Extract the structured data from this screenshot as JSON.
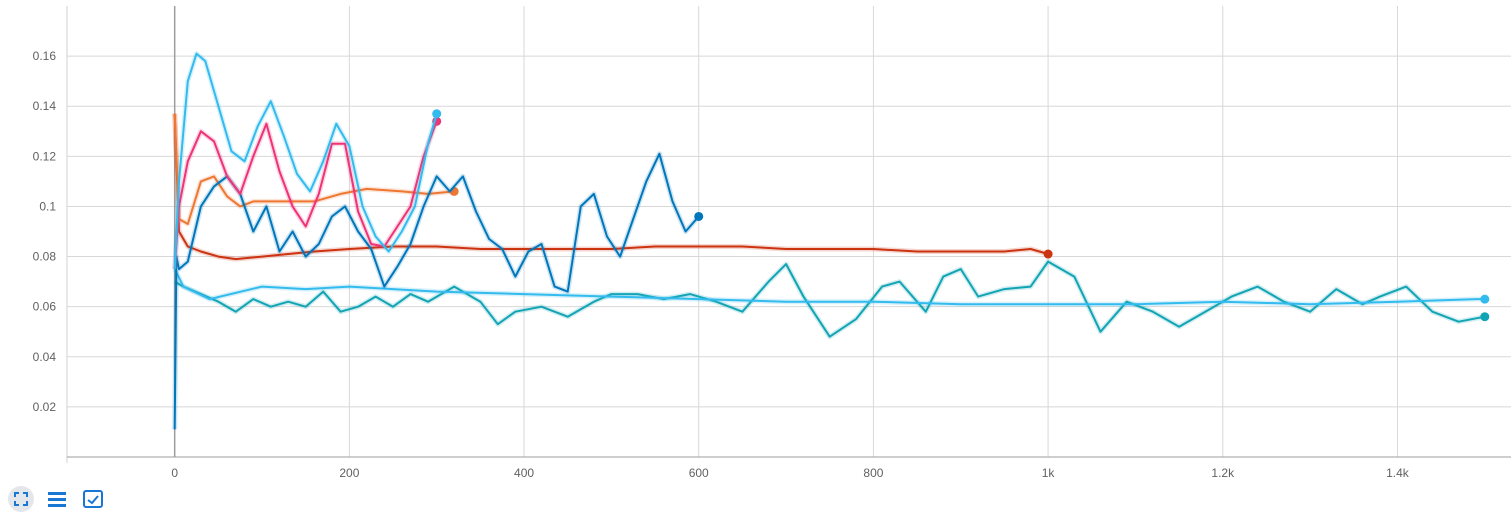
{
  "chart_data": {
    "type": "line",
    "xlim": [
      -200,
      1530
    ],
    "ylim": [
      0,
      0.18
    ],
    "x_ticks": [
      {
        "value": 0,
        "label": "0"
      },
      {
        "value": 200,
        "label": "200"
      },
      {
        "value": 400,
        "label": "400"
      },
      {
        "value": 600,
        "label": "600"
      },
      {
        "value": 800,
        "label": "800"
      },
      {
        "value": 1000,
        "label": "1k"
      },
      {
        "value": 1200,
        "label": "1.2k"
      },
      {
        "value": 1400,
        "label": "1.4k"
      }
    ],
    "y_ticks": [
      {
        "value": 0.02,
        "label": "0.02"
      },
      {
        "value": 0.04,
        "label": "0.04"
      },
      {
        "value": 0.06,
        "label": "0.06"
      },
      {
        "value": 0.08,
        "label": "0.08"
      },
      {
        "value": 0.1,
        "label": "0.1"
      },
      {
        "value": 0.12,
        "label": "0.12"
      },
      {
        "value": 0.14,
        "label": "0.14"
      },
      {
        "value": 0.16,
        "label": "0.16"
      }
    ],
    "grid": true,
    "legend": "none",
    "series": [
      {
        "color": "#12a4b4",
        "x": [
          0,
          10,
          30,
          50,
          70,
          90,
          110,
          130,
          150,
          170,
          190,
          210,
          230,
          250,
          270,
          290,
          320,
          350,
          370,
          390,
          420,
          450,
          480,
          500,
          530,
          560,
          590,
          620,
          650,
          680,
          700,
          720,
          750,
          780,
          810,
          830,
          860,
          880,
          900,
          920,
          950,
          980,
          1000,
          1030,
          1060,
          1090,
          1120,
          1150,
          1180,
          1210,
          1240,
          1270,
          1300,
          1330,
          1360,
          1380,
          1410,
          1440,
          1470,
          1500
        ],
        "y": [
          0.07,
          0.068,
          0.065,
          0.062,
          0.058,
          0.063,
          0.06,
          0.062,
          0.06,
          0.066,
          0.058,
          0.06,
          0.064,
          0.06,
          0.065,
          0.062,
          0.068,
          0.062,
          0.053,
          0.058,
          0.06,
          0.056,
          0.062,
          0.065,
          0.065,
          0.063,
          0.065,
          0.062,
          0.058,
          0.07,
          0.077,
          0.064,
          0.048,
          0.055,
          0.068,
          0.07,
          0.058,
          0.072,
          0.075,
          0.064,
          0.067,
          0.068,
          0.078,
          0.072,
          0.05,
          0.062,
          0.058,
          0.052,
          0.058,
          0.064,
          0.068,
          0.062,
          0.058,
          0.067,
          0.061,
          0.064,
          0.068,
          0.058,
          0.054,
          0.056
        ]
      },
      {
        "color": "#33bbee",
        "x": [
          0,
          10,
          40,
          100,
          150,
          200,
          250,
          300,
          400,
          500,
          600,
          700,
          800,
          900,
          1000,
          1100,
          1200,
          1300,
          1400,
          1490,
          1500
        ],
        "y": [
          0.075,
          0.068,
          0.063,
          0.068,
          0.067,
          0.068,
          0.067,
          0.066,
          0.065,
          0.064,
          0.063,
          0.062,
          0.062,
          0.061,
          0.061,
          0.061,
          0.062,
          0.061,
          0.062,
          0.063,
          0.063
        ]
      },
      {
        "color": "#cc3311",
        "x": [
          0,
          5,
          15,
          30,
          50,
          70,
          100,
          130,
          160,
          200,
          250,
          300,
          350,
          400,
          450,
          500,
          550,
          600,
          650,
          700,
          750,
          800,
          850,
          900,
          950,
          980,
          1000
        ],
        "y": [
          0.137,
          0.09,
          0.084,
          0.082,
          0.08,
          0.079,
          0.08,
          0.081,
          0.082,
          0.083,
          0.084,
          0.084,
          0.083,
          0.083,
          0.083,
          0.083,
          0.084,
          0.084,
          0.084,
          0.083,
          0.083,
          0.083,
          0.082,
          0.082,
          0.082,
          0.083,
          0.081
        ]
      },
      {
        "color": "#ee7733",
        "x": [
          0,
          5,
          15,
          30,
          45,
          60,
          75,
          90,
          110,
          130,
          160,
          190,
          220,
          260,
          290,
          320
        ],
        "y": [
          0.137,
          0.095,
          0.093,
          0.11,
          0.112,
          0.104,
          0.1,
          0.102,
          0.102,
          0.102,
          0.102,
          0.105,
          0.107,
          0.106,
          0.105,
          0.106
        ]
      },
      {
        "color": "#0077bb",
        "x": [
          0,
          2,
          5,
          15,
          30,
          45,
          60,
          75,
          90,
          105,
          120,
          135,
          150,
          165,
          180,
          195,
          210,
          225,
          240,
          255,
          270,
          285,
          300,
          315,
          330,
          345,
          360,
          375,
          390,
          405,
          420,
          435,
          450,
          465,
          480,
          495,
          510,
          525,
          540,
          555,
          570,
          585,
          600
        ],
        "y": [
          0.011,
          0.08,
          0.075,
          0.078,
          0.1,
          0.108,
          0.112,
          0.105,
          0.09,
          0.1,
          0.082,
          0.09,
          0.08,
          0.085,
          0.096,
          0.1,
          0.09,
          0.083,
          0.068,
          0.076,
          0.085,
          0.1,
          0.112,
          0.106,
          0.112,
          0.098,
          0.087,
          0.083,
          0.072,
          0.082,
          0.085,
          0.068,
          0.066,
          0.1,
          0.105,
          0.088,
          0.08,
          0.095,
          0.11,
          0.121,
          0.102,
          0.09,
          0.096
        ]
      },
      {
        "color": "#ee3377",
        "x": [
          0,
          5,
          15,
          30,
          45,
          60,
          75,
          90,
          105,
          120,
          135,
          150,
          165,
          180,
          195,
          210,
          225,
          240,
          255,
          270,
          285,
          300
        ],
        "y": [
          0.075,
          0.1,
          0.118,
          0.13,
          0.126,
          0.112,
          0.105,
          0.12,
          0.133,
          0.114,
          0.1,
          0.092,
          0.105,
          0.125,
          0.125,
          0.098,
          0.085,
          0.084,
          0.092,
          0.1,
          0.12,
          0.134
        ]
      },
      {
        "color": "#33bbee",
        "x": [
          0,
          5,
          15,
          25,
          35,
          50,
          65,
          80,
          95,
          110,
          125,
          140,
          155,
          170,
          185,
          200,
          215,
          230,
          245,
          260,
          275,
          290,
          300
        ],
        "y": [
          0.075,
          0.11,
          0.15,
          0.161,
          0.158,
          0.14,
          0.122,
          0.118,
          0.132,
          0.142,
          0.128,
          0.113,
          0.106,
          0.118,
          0.133,
          0.124,
          0.1,
          0.088,
          0.082,
          0.09,
          0.1,
          0.125,
          0.137
        ]
      }
    ]
  }
}
